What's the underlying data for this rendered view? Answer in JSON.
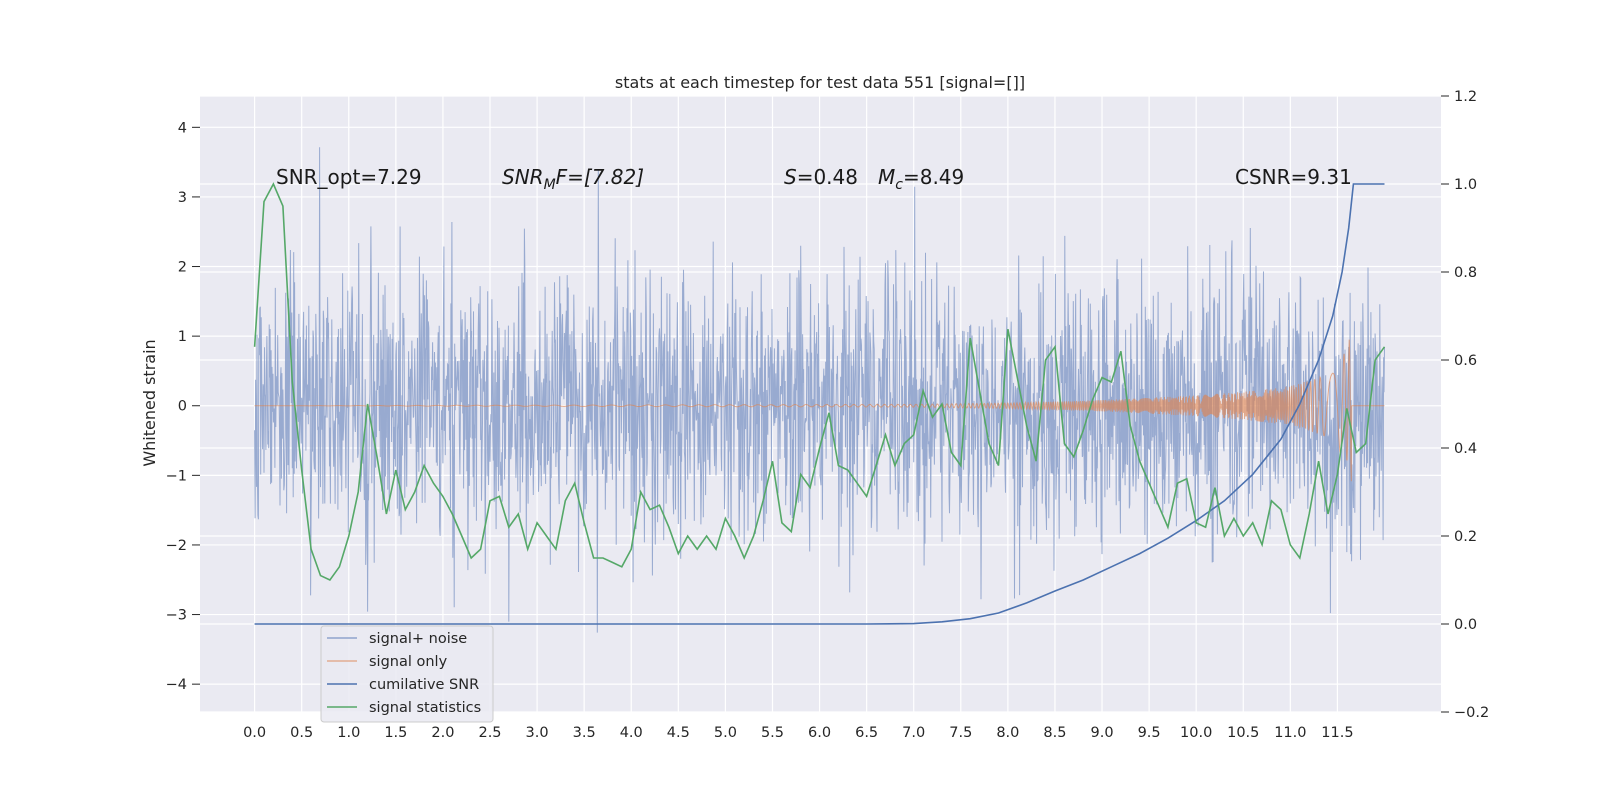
{
  "chart_data": {
    "type": "line",
    "title": "stats at each timestep for test data 551 [signal=[]]",
    "ylabel": "Whitened strain",
    "xlim": [
      -0.58,
      12.6
    ],
    "ylim": [
      -4.4,
      4.45
    ],
    "y2lim": [
      -0.2,
      1.2
    ],
    "x_ticks": [
      "0.0",
      "0.5",
      "1.0",
      "1.5",
      "2.0",
      "2.5",
      "3.0",
      "3.5",
      "4.0",
      "4.5",
      "5.0",
      "5.5",
      "6.0",
      "6.5",
      "7.0",
      "7.5",
      "8.0",
      "8.5",
      "9.0",
      "9.5",
      "10.0",
      "10.5",
      "11.0",
      "11.5"
    ],
    "y_ticks": [
      "4",
      "3",
      "2",
      "1",
      "0",
      "−1",
      "−2",
      "−3",
      "−4"
    ],
    "y2_ticks": [
      "1.2",
      "1.0",
      "0.8",
      "0.6",
      "0.4",
      "0.2",
      "0.0",
      "−0.2"
    ],
    "grid": true,
    "legend_position": "lower-left",
    "annotations": {
      "snr_opt": "SNR_opt=7.29",
      "snr_mf_base": "SNR",
      "snr_mf_sub": "M",
      "snr_mf_rest": "F=[7.82]",
      "s_sym": "S",
      "s_val": "=0.48",
      "mc_base": "M",
      "mc_sub": "c",
      "mc_val": "=8.49",
      "csnr": "CSNR=9.31"
    },
    "series": [
      {
        "name": "signal+ noise",
        "color": "#8fa3cc",
        "axis": "left",
        "x_range": [
          0,
          12
        ],
        "approx_std": 0.95,
        "approx_range": [
          -4,
          4.1
        ]
      },
      {
        "name": "signal only",
        "color": "#dd8452",
        "axis": "left",
        "x_range": [
          0,
          11.67
        ],
        "envelope": [
          [
            0,
            0.0
          ],
          [
            7.0,
            0.02
          ],
          [
            8.0,
            0.04
          ],
          [
            9.0,
            0.08
          ],
          [
            10.0,
            0.15
          ],
          [
            10.5,
            0.2
          ],
          [
            11.0,
            0.28
          ],
          [
            11.4,
            0.45
          ],
          [
            11.6,
            0.8
          ],
          [
            11.65,
            1.1
          ]
        ]
      },
      {
        "name": "cumilative SNR",
        "color": "#4c72b0",
        "axis": "right",
        "x": [
          0,
          1,
          2,
          3,
          4,
          5,
          6,
          6.5,
          7.0,
          7.3,
          7.6,
          7.9,
          8.2,
          8.5,
          8.8,
          9.1,
          9.4,
          9.7,
          10.0,
          10.3,
          10.6,
          10.9,
          11.1,
          11.3,
          11.45,
          11.55,
          11.62,
          11.67,
          11.7,
          12.0
        ],
        "y": [
          0,
          0,
          0,
          0,
          0,
          0,
          0,
          0,
          0.001,
          0.005,
          0.012,
          0.025,
          0.048,
          0.075,
          0.1,
          0.13,
          0.16,
          0.195,
          0.235,
          0.28,
          0.34,
          0.42,
          0.5,
          0.6,
          0.7,
          0.8,
          0.9,
          1.0,
          1.0,
          1.0
        ]
      },
      {
        "name": "signal statistics",
        "color": "#55a868",
        "axis": "right",
        "x": [
          0,
          0.1,
          0.2,
          0.3,
          0.4,
          0.5,
          0.6,
          0.7,
          0.8,
          0.9,
          1.0,
          1.1,
          1.2,
          1.3,
          1.4,
          1.5,
          1.6,
          1.7,
          1.8,
          1.9,
          2.0,
          2.1,
          2.2,
          2.3,
          2.4,
          2.5,
          2.6,
          2.7,
          2.8,
          2.9,
          3.0,
          3.1,
          3.2,
          3.3,
          3.4,
          3.5,
          3.6,
          3.7,
          3.8,
          3.9,
          4.0,
          4.1,
          4.2,
          4.3,
          4.4,
          4.5,
          4.6,
          4.7,
          4.8,
          4.9,
          5.0,
          5.1,
          5.2,
          5.3,
          5.4,
          5.5,
          5.6,
          5.7,
          5.8,
          5.9,
          6.0,
          6.1,
          6.2,
          6.3,
          6.4,
          6.5,
          6.6,
          6.7,
          6.8,
          6.9,
          7.0,
          7.1,
          7.2,
          7.3,
          7.4,
          7.5,
          7.6,
          7.7,
          7.8,
          7.9,
          8.0,
          8.1,
          8.2,
          8.3,
          8.4,
          8.5,
          8.6,
          8.7,
          8.8,
          8.9,
          9.0,
          9.1,
          9.2,
          9.3,
          9.4,
          9.5,
          9.6,
          9.7,
          9.8,
          9.9,
          10.0,
          10.1,
          10.2,
          10.3,
          10.4,
          10.5,
          10.6,
          10.7,
          10.8,
          10.9,
          11.0,
          11.1,
          11.2,
          11.3,
          11.4,
          11.5,
          11.6,
          11.7,
          11.8,
          11.9,
          12.0
        ],
        "y": [
          0.63,
          0.96,
          1.0,
          0.95,
          0.55,
          0.35,
          0.17,
          0.11,
          0.1,
          0.13,
          0.2,
          0.3,
          0.5,
          0.38,
          0.25,
          0.35,
          0.26,
          0.3,
          0.36,
          0.32,
          0.29,
          0.25,
          0.2,
          0.15,
          0.17,
          0.28,
          0.29,
          0.22,
          0.25,
          0.17,
          0.23,
          0.2,
          0.17,
          0.28,
          0.32,
          0.23,
          0.15,
          0.15,
          0.14,
          0.13,
          0.17,
          0.3,
          0.26,
          0.27,
          0.22,
          0.16,
          0.2,
          0.17,
          0.2,
          0.17,
          0.24,
          0.2,
          0.15,
          0.2,
          0.28,
          0.37,
          0.23,
          0.21,
          0.34,
          0.31,
          0.4,
          0.48,
          0.36,
          0.35,
          0.32,
          0.29,
          0.36,
          0.43,
          0.36,
          0.41,
          0.43,
          0.53,
          0.47,
          0.5,
          0.39,
          0.36,
          0.65,
          0.53,
          0.41,
          0.36,
          0.67,
          0.56,
          0.45,
          0.37,
          0.6,
          0.63,
          0.41,
          0.38,
          0.44,
          0.51,
          0.56,
          0.55,
          0.62,
          0.45,
          0.37,
          0.32,
          0.27,
          0.22,
          0.32,
          0.33,
          0.23,
          0.22,
          0.31,
          0.2,
          0.24,
          0.2,
          0.23,
          0.18,
          0.28,
          0.26,
          0.18,
          0.15,
          0.25,
          0.37,
          0.25,
          0.34,
          0.49,
          0.39,
          0.41,
          0.6,
          0.63
        ]
      }
    ]
  }
}
